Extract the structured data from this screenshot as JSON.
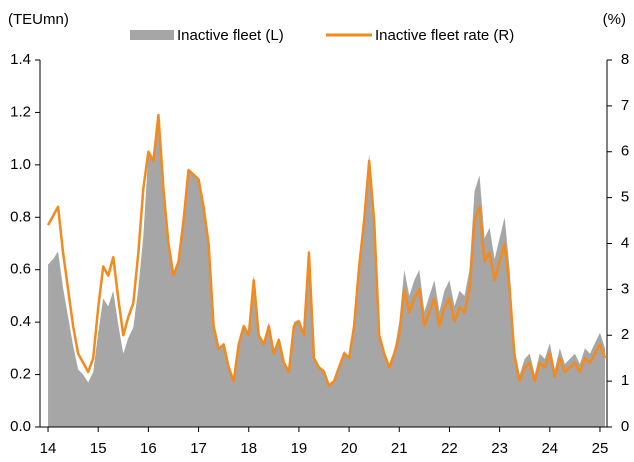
{
  "chart_data": {
    "type": "area_line",
    "y_label": "(TEUmn)",
    "y2_label": "(%)",
    "x": [
      14.0,
      14.1,
      14.2,
      14.3,
      14.4,
      14.5,
      14.6,
      14.7,
      14.8,
      14.9,
      15.0,
      15.1,
      15.2,
      15.3,
      15.4,
      15.5,
      15.6,
      15.7,
      15.8,
      15.9,
      16.0,
      16.1,
      16.2,
      16.3,
      16.4,
      16.5,
      16.6,
      16.7,
      16.8,
      16.9,
      17.0,
      17.1,
      17.2,
      17.3,
      17.4,
      17.5,
      17.6,
      17.7,
      17.8,
      17.9,
      18.0,
      18.1,
      18.2,
      18.3,
      18.4,
      18.5,
      18.6,
      18.7,
      18.8,
      18.9,
      19.0,
      19.1,
      19.2,
      19.3,
      19.4,
      19.5,
      19.6,
      19.7,
      19.8,
      19.9,
      20.0,
      20.1,
      20.2,
      20.3,
      20.4,
      20.5,
      20.6,
      20.7,
      20.8,
      20.9,
      21.0,
      21.1,
      21.2,
      21.3,
      21.4,
      21.5,
      21.6,
      21.7,
      21.8,
      21.9,
      22.0,
      22.1,
      22.2,
      22.3,
      22.4,
      22.5,
      22.6,
      22.7,
      22.8,
      22.9,
      23.0,
      23.1,
      23.2,
      23.3,
      23.4,
      23.5,
      23.6,
      23.7,
      23.8,
      23.9,
      24.0,
      24.1,
      24.2,
      24.3,
      24.4,
      24.5,
      24.6,
      24.7,
      24.8,
      24.9,
      25.0,
      25.1
    ],
    "series": [
      {
        "name": "Inactive fleet (L)",
        "color": "#a6a6a6",
        "kind": "area",
        "values": [
          0.62,
          0.64,
          0.67,
          0.53,
          0.42,
          0.31,
          0.22,
          0.2,
          0.17,
          0.21,
          0.36,
          0.49,
          0.46,
          0.52,
          0.39,
          0.28,
          0.34,
          0.38,
          0.53,
          0.73,
          1.05,
          1.02,
          1.19,
          0.91,
          0.7,
          0.58,
          0.63,
          0.79,
          0.98,
          0.96,
          0.95,
          0.84,
          0.7,
          0.39,
          0.3,
          0.32,
          0.23,
          0.18,
          0.32,
          0.39,
          0.36,
          0.58,
          0.36,
          0.32,
          0.4,
          0.29,
          0.34,
          0.25,
          0.22,
          0.4,
          0.41,
          0.36,
          0.68,
          0.27,
          0.23,
          0.22,
          0.16,
          0.18,
          0.23,
          0.29,
          0.27,
          0.4,
          0.63,
          0.81,
          1.04,
          0.81,
          0.36,
          0.29,
          0.23,
          0.29,
          0.4,
          0.6,
          0.5,
          0.56,
          0.6,
          0.44,
          0.5,
          0.56,
          0.44,
          0.52,
          0.56,
          0.46,
          0.52,
          0.5,
          0.6,
          0.9,
          0.96,
          0.72,
          0.76,
          0.64,
          0.72,
          0.8,
          0.6,
          0.3,
          0.2,
          0.26,
          0.28,
          0.2,
          0.28,
          0.26,
          0.32,
          0.22,
          0.3,
          0.24,
          0.26,
          0.28,
          0.24,
          0.3,
          0.28,
          0.32,
          0.36,
          0.3
        ]
      },
      {
        "name": "Inactive fleet rate (R)",
        "color": "#f28a1e",
        "kind": "line",
        "axis": "y2",
        "values": [
          4.4,
          4.6,
          4.8,
          3.8,
          3.0,
          2.2,
          1.6,
          1.4,
          1.2,
          1.5,
          2.6,
          3.5,
          3.3,
          3.7,
          2.8,
          2.0,
          2.4,
          2.7,
          3.8,
          5.2,
          6.0,
          5.8,
          6.8,
          5.2,
          4.0,
          3.3,
          3.6,
          4.5,
          5.6,
          5.5,
          5.4,
          4.8,
          4.0,
          2.2,
          1.7,
          1.8,
          1.3,
          1.0,
          1.8,
          2.2,
          2.0,
          3.2,
          2.0,
          1.8,
          2.2,
          1.6,
          1.9,
          1.4,
          1.2,
          2.2,
          2.3,
          2.0,
          3.8,
          1.5,
          1.3,
          1.2,
          0.9,
          1.0,
          1.3,
          1.6,
          1.5,
          2.2,
          3.5,
          4.5,
          5.8,
          4.5,
          2.0,
          1.6,
          1.3,
          1.6,
          2.0,
          3.0,
          2.5,
          2.8,
          3.0,
          2.2,
          2.5,
          2.8,
          2.2,
          2.6,
          2.8,
          2.3,
          2.6,
          2.5,
          3.0,
          4.5,
          4.8,
          3.6,
          3.8,
          3.2,
          3.6,
          4.0,
          3.0,
          1.5,
          1.0,
          1.3,
          1.4,
          1.0,
          1.4,
          1.3,
          1.6,
          1.1,
          1.5,
          1.2,
          1.3,
          1.4,
          1.2,
          1.5,
          1.4,
          1.6,
          1.8,
          1.5
        ]
      }
    ],
    "xlim": [
      13.84,
      25.14
    ],
    "xticks": [
      14,
      15,
      16,
      17,
      18,
      19,
      20,
      21,
      22,
      23,
      24,
      25
    ],
    "ylim": [
      0,
      1.4
    ],
    "yticks": [
      {
        "value": 0,
        "label": "0.0"
      },
      0.2,
      0.4,
      0.6,
      0.8,
      {
        "value": 1,
        "label": "1.0"
      },
      1.2,
      1.4
    ],
    "y2lim": [
      0,
      8
    ],
    "y2ticks": [
      0,
      1,
      2,
      3,
      4,
      5,
      6,
      7,
      8
    ],
    "grid": false
  }
}
